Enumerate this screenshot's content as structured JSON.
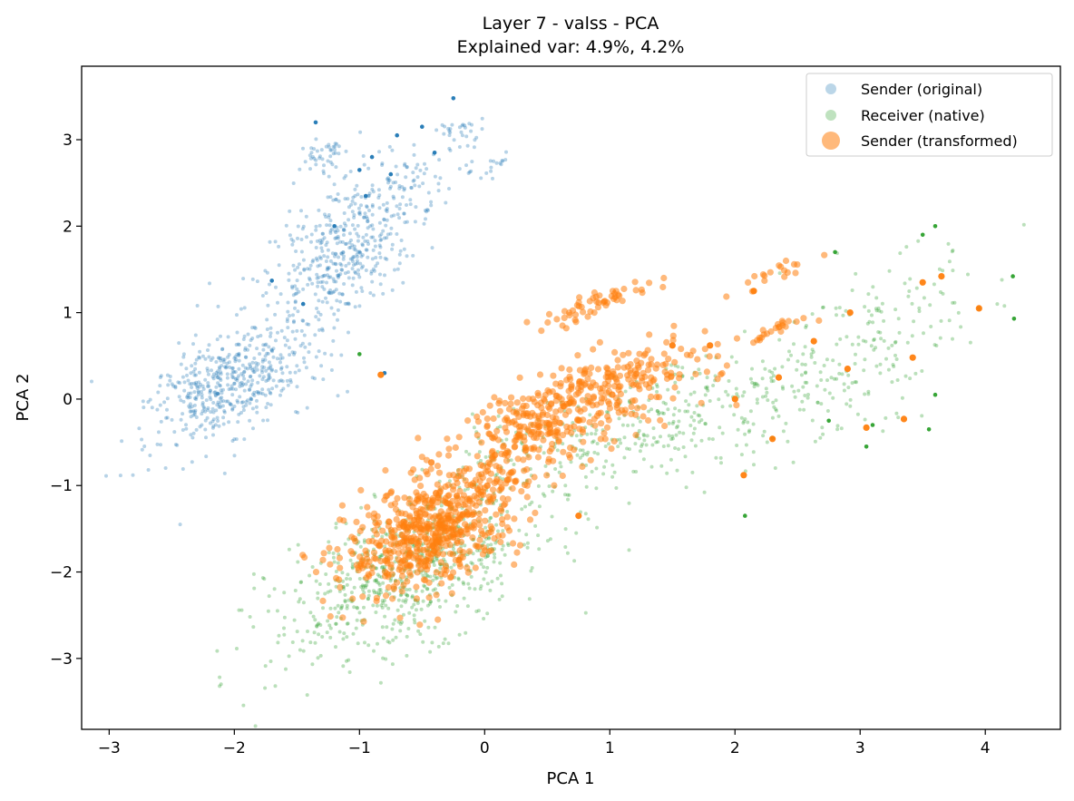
{
  "chart_data": {
    "type": "scatter",
    "title": "Layer 7 - valss - PCA",
    "subtitle": "Explained var: 4.9%, 4.2%",
    "xlabel": "PCA 1",
    "ylabel": "PCA 2",
    "xlim": [
      -3.22,
      4.6
    ],
    "ylim": [
      -3.82,
      3.85
    ],
    "xticks": [
      -3,
      -2,
      -1,
      0,
      1,
      2,
      3,
      4
    ],
    "yticks": [
      -3,
      -2,
      -1,
      0,
      1,
      2,
      3
    ],
    "grid": false,
    "legend_position": "top-right",
    "series": [
      {
        "name": "Sender (original)",
        "color": "#1f77b4",
        "clusters": [
          {
            "center": [
              -2.0,
              0.2
            ],
            "spread": [
              0.35,
              0.4
            ],
            "count": 520
          },
          {
            "center": [
              -1.15,
              1.6
            ],
            "spread": [
              0.3,
              0.4
            ],
            "count": 320
          },
          {
            "center": [
              -0.85,
              2.3
            ],
            "spread": [
              0.35,
              0.35
            ],
            "count": 180
          },
          {
            "center": [
              -1.3,
              2.8
            ],
            "spread": [
              0.12,
              0.12
            ],
            "count": 40
          },
          {
            "center": [
              -0.2,
              3.1
            ],
            "spread": [
              0.08,
              0.15
            ],
            "count": 25
          },
          {
            "center": [
              0.1,
              2.75
            ],
            "spread": [
              0.06,
              0.08
            ],
            "count": 12
          }
        ],
        "points": [
          [
            -1.35,
            3.2
          ],
          [
            -0.75,
            2.6
          ],
          [
            -0.7,
            3.05
          ],
          [
            -0.5,
            3.15
          ],
          [
            -0.25,
            3.48
          ],
          [
            -0.4,
            2.85
          ],
          [
            -1.7,
            1.37
          ],
          [
            -0.8,
            0.3
          ],
          [
            -1.0,
            2.65
          ],
          [
            -1.2,
            2.0
          ],
          [
            -0.95,
            2.35
          ],
          [
            -1.45,
            1.1
          ],
          [
            -0.9,
            2.8
          ]
        ]
      },
      {
        "name": "Receiver (native)",
        "color": "#2ca02c",
        "clusters": [
          {
            "center": [
              -0.6,
              -2.0
            ],
            "spread": [
              0.55,
              0.55
            ],
            "count": 700
          },
          {
            "center": [
              1.5,
              -0.2
            ],
            "spread": [
              0.55,
              0.4
            ],
            "count": 260
          },
          {
            "center": [
              2.7,
              0.1
            ],
            "spread": [
              0.5,
              0.45
            ],
            "count": 140
          },
          {
            "center": [
              3.1,
              0.9
            ],
            "spread": [
              0.5,
              0.45
            ],
            "count": 90
          },
          {
            "center": [
              0.2,
              -0.6
            ],
            "spread": [
              0.3,
              0.3
            ],
            "count": 60
          }
        ],
        "points": [
          [
            -1.0,
            0.52
          ],
          [
            2.08,
            -1.35
          ],
          [
            4.22,
            1.42
          ],
          [
            4.23,
            0.93
          ],
          [
            2.8,
            1.7
          ],
          [
            3.05,
            -0.55
          ],
          [
            3.6,
            0.05
          ],
          [
            3.95,
            1.05
          ],
          [
            3.55,
            -0.35
          ],
          [
            2.3,
            -0.45
          ],
          [
            3.1,
            -0.3
          ],
          [
            2.75,
            -0.25
          ],
          [
            3.6,
            2.0
          ],
          [
            3.5,
            1.9
          ]
        ]
      },
      {
        "name": "Sender (transformed)",
        "color": "#ff7f0e",
        "clusters": [
          {
            "center": [
              -0.4,
              -1.5
            ],
            "spread": [
              0.35,
              0.42
            ],
            "count": 620
          },
          {
            "center": [
              0.7,
              -0.2
            ],
            "spread": [
              0.55,
              0.38
            ],
            "count": 280
          },
          {
            "center": [
              1.0,
              0.2
            ],
            "spread": [
              0.35,
              0.2
            ],
            "count": 110
          },
          {
            "center": [
              0.9,
              1.1
            ],
            "spread": [
              0.3,
              0.08
            ],
            "count": 55
          },
          {
            "center": [
              2.3,
              0.8
            ],
            "spread": [
              0.12,
              0.06
            ],
            "count": 22
          },
          {
            "center": [
              2.4,
              1.5
            ],
            "spread": [
              0.15,
              0.08
            ],
            "count": 18
          },
          {
            "center": [
              0.3,
              -0.3
            ],
            "spread": [
              0.2,
              0.25
            ],
            "count": 60
          }
        ],
        "points": [
          [
            -0.83,
            0.28
          ],
          [
            2.07,
            -0.88
          ],
          [
            3.95,
            1.05
          ],
          [
            2.92,
            1.0
          ],
          [
            3.05,
            -0.33
          ],
          [
            3.35,
            -0.23
          ],
          [
            2.63,
            0.67
          ],
          [
            1.8,
            0.62
          ],
          [
            2.15,
            1.25
          ],
          [
            3.42,
            0.48
          ],
          [
            2.9,
            0.35
          ],
          [
            2.3,
            -0.46
          ],
          [
            1.5,
            0.62
          ],
          [
            2.0,
            0.0
          ],
          [
            2.35,
            0.25
          ],
          [
            3.5,
            1.35
          ],
          [
            3.65,
            1.42
          ],
          [
            0.75,
            -1.35
          ]
        ]
      }
    ]
  }
}
